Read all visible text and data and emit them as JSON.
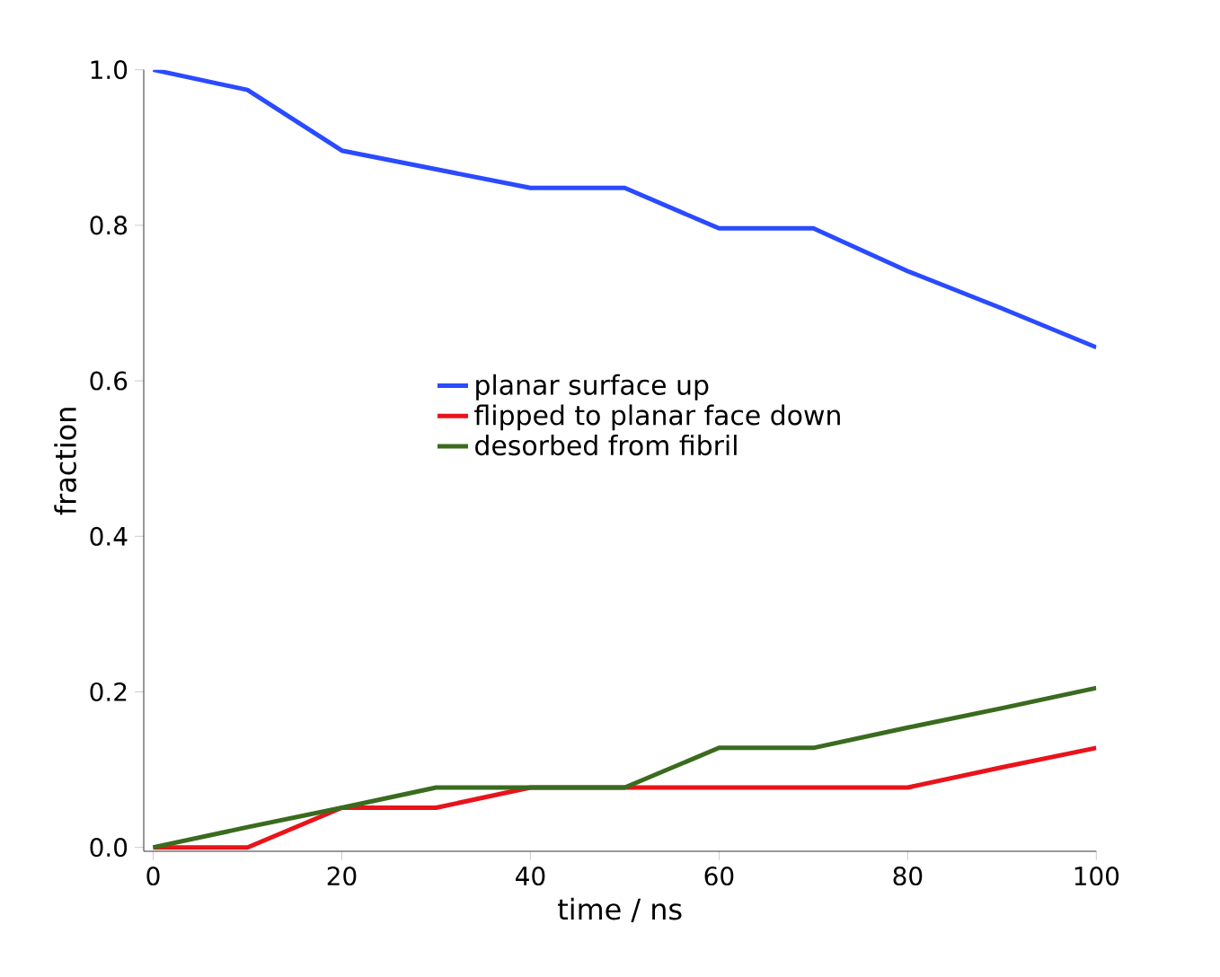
{
  "chart_data": {
    "type": "line",
    "xlabel": "time / ns",
    "ylabel": "fraction",
    "x": [
      0,
      10,
      20,
      30,
      40,
      50,
      60,
      70,
      80,
      90,
      100
    ],
    "series": [
      {
        "name": "planar surface up",
        "color": "#2a4bff",
        "values": [
          1.0,
          0.974,
          0.896,
          0.872,
          0.848,
          0.848,
          0.796,
          0.796,
          0.741,
          0.693,
          0.643
        ]
      },
      {
        "name": "flipped to planar face down",
        "color": "#e8141b",
        "values": [
          0,
          0,
          0.051,
          0.051,
          0.077,
          0.077,
          0.077,
          0.077,
          0.077,
          0.103,
          0.128
        ]
      },
      {
        "name": "desorbed from fibril",
        "color": "#3a6b1e",
        "values": [
          0,
          0.026,
          0.051,
          0.077,
          0.077,
          0.077,
          0.128,
          0.128,
          0.154,
          0.179,
          0.205
        ]
      }
    ],
    "xlim": [
      -1,
      100
    ],
    "ylim": [
      -0.005,
      1
    ],
    "xticks": [
      0,
      20,
      40,
      60,
      80,
      100
    ],
    "yticks": [
      {
        "value": 0,
        "label": "0.0"
      },
      {
        "value": 0.2,
        "label": "0.2"
      },
      {
        "value": 0.4,
        "label": "0.4"
      },
      {
        "value": 0.6,
        "label": "0.6"
      },
      {
        "value": 0.8,
        "label": "0.8"
      },
      {
        "value": 1,
        "label": "1.0"
      }
    ],
    "grid": false,
    "legend": "center",
    "marker": "none",
    "line_style": "solid"
  }
}
